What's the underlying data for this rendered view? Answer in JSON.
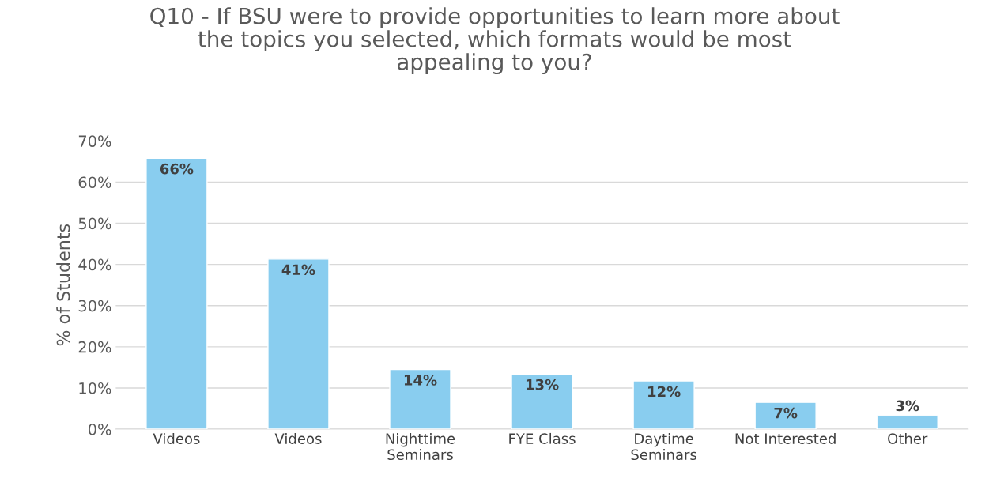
{
  "chart_data": {
    "type": "bar",
    "title": "Q10 - If BSU were to provide opportunities to learn more about\nthe topics you selected, which formats would be most\nappealing to you?",
    "ylabel": "% of Students",
    "categories": [
      "Videos",
      "Videos",
      "Nighttime\nSeminars",
      "FYE Class",
      "Daytime\nSeminars",
      "Not Interested",
      "Other"
    ],
    "values": [
      65.8,
      41.3,
      14.5,
      13.4,
      11.7,
      6.5,
      3.3
    ],
    "value_labels": [
      "66%",
      "41%",
      "14%",
      "13%",
      "12%",
      "7%",
      "3%"
    ],
    "color": "#89cdef",
    "ylim": [
      0,
      70
    ],
    "yticks": [
      {
        "value": 0,
        "label": "0%"
      },
      {
        "value": 10,
        "label": "10%"
      },
      {
        "value": 20,
        "label": "20%"
      },
      {
        "value": 30,
        "label": "30%"
      },
      {
        "value": 40,
        "label": "40%"
      },
      {
        "value": 50,
        "label": "50%"
      },
      {
        "value": 60,
        "label": "60%"
      },
      {
        "value": 70,
        "label": "70%"
      }
    ],
    "grid": "y"
  }
}
